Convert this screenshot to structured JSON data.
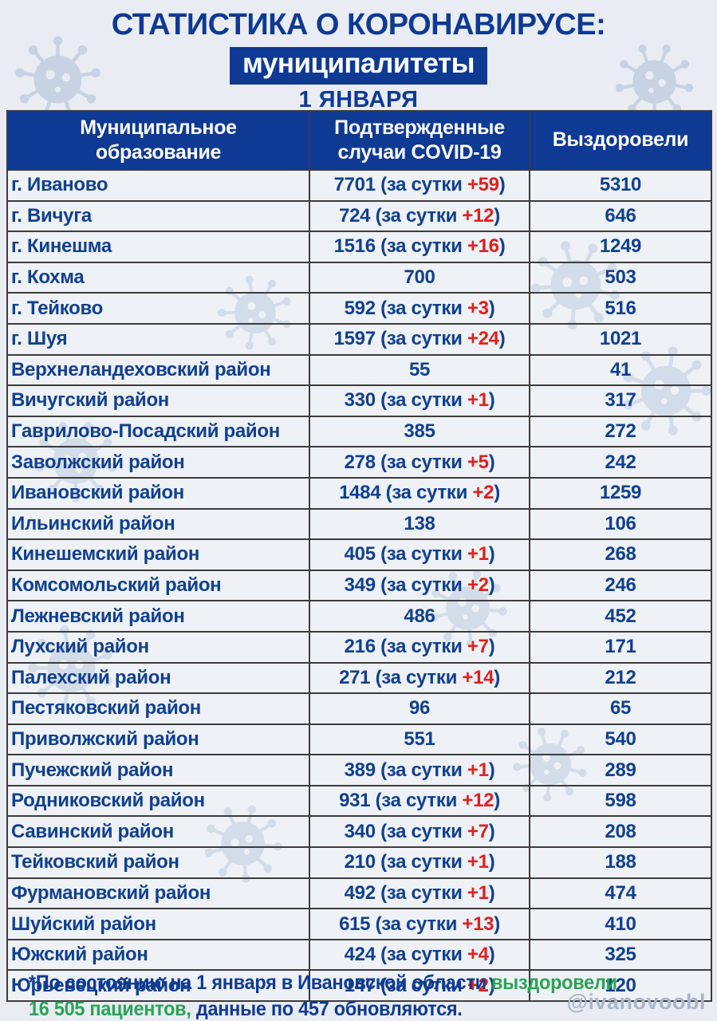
{
  "header": {
    "title": "СТАТИСТИКА О КОРОНАВИРУСЕ:",
    "badge": "муниципалитеты",
    "date": "1 ЯНВАРЯ"
  },
  "table": {
    "columns": [
      {
        "lines": [
          "Муниципальное",
          "образование"
        ]
      },
      {
        "lines": [
          "Подтвержденные",
          "случаи COVID-19"
        ]
      },
      {
        "lines": [
          "Выздоровели"
        ]
      }
    ],
    "daily_label": "за сутки",
    "rows": [
      {
        "name": "г. Иваново",
        "total": "7701",
        "daily": "+59",
        "recovered": "5310"
      },
      {
        "name": "г. Вичуга",
        "total": "724",
        "daily": "+12",
        "recovered": "646"
      },
      {
        "name": "г. Кинешма",
        "total": "1516",
        "daily": "+16",
        "recovered": "1249"
      },
      {
        "name": "г. Кохма",
        "total": "700",
        "daily": null,
        "recovered": "503"
      },
      {
        "name": "г. Тейково",
        "total": "592",
        "daily": "+3",
        "recovered": "516"
      },
      {
        "name": "г. Шуя",
        "total": "1597",
        "daily": "+24",
        "recovered": "1021"
      },
      {
        "name": "Верхнеландеховский район",
        "total": "55",
        "daily": null,
        "recovered": "41"
      },
      {
        "name": "Вичугский район",
        "total": "330",
        "daily": "+1",
        "recovered": "317"
      },
      {
        "name": "Гаврилово-Посадский район",
        "total": "385",
        "daily": null,
        "recovered": "272"
      },
      {
        "name": "Заволжский район",
        "total": "278",
        "daily": "+5",
        "recovered": "242"
      },
      {
        "name": "Ивановский район",
        "total": "1484",
        "daily": "+2",
        "recovered": "1259"
      },
      {
        "name": "Ильинский район",
        "total": "138",
        "daily": null,
        "recovered": "106"
      },
      {
        "name": "Кинешемский район",
        "total": "405",
        "daily": "+1",
        "recovered": "268"
      },
      {
        "name": "Комсомольский район",
        "total": "349",
        "daily": "+2",
        "recovered": "246"
      },
      {
        "name": "Лежневский район",
        "total": "486",
        "daily": null,
        "recovered": "452"
      },
      {
        "name": "Лухский район",
        "total": "216",
        "daily": "+7",
        "recovered": "171"
      },
      {
        "name": "Палехский район",
        "total": "271",
        "daily": "+14",
        "recovered": "212"
      },
      {
        "name": "Пестяковский район",
        "total": "96",
        "daily": null,
        "recovered": "65"
      },
      {
        "name": "Приволжский район",
        "total": "551",
        "daily": null,
        "recovered": "540"
      },
      {
        "name": "Пучежский район",
        "total": "389",
        "daily": "+1",
        "recovered": "289"
      },
      {
        "name": "Родниковский район",
        "total": "931",
        "daily": "+12",
        "recovered": "598"
      },
      {
        "name": "Савинский район",
        "total": "340",
        "daily": "+7",
        "recovered": "208"
      },
      {
        "name": "Тейковский район",
        "total": "210",
        "daily": "+1",
        "recovered": "188"
      },
      {
        "name": "Фурмановский район",
        "total": "492",
        "daily": "+1",
        "recovered": "474"
      },
      {
        "name": "Шуйский район",
        "total": "615",
        "daily": "+13",
        "recovered": "410"
      },
      {
        "name": "Южский район",
        "total": "424",
        "daily": "+4",
        "recovered": "325"
      },
      {
        "name": "Юрьевецкий район",
        "total": "147",
        "daily": "+2",
        "recovered": "120"
      }
    ]
  },
  "footnote": {
    "line1": [
      {
        "text": "*По состоянию на 1 января в Ивановской области ",
        "color": "navy"
      },
      {
        "text": "выздоровели",
        "color": "green"
      }
    ],
    "line2": [
      {
        "text": "16 505 пациентов,",
        "color": "green"
      },
      {
        "text": " данные по 457 обновляются.",
        "color": "navy"
      }
    ]
  },
  "watermark": "@ivanovoobl",
  "colors": {
    "navy": "#0e3a94",
    "text_navy": "#10408f",
    "red": "#e01f1f",
    "green": "#2aa355",
    "background": "#e9edf3",
    "icon_blue": "#c7d3e3",
    "border": "#3c3c3c",
    "watermark": "#a8b7cd"
  }
}
